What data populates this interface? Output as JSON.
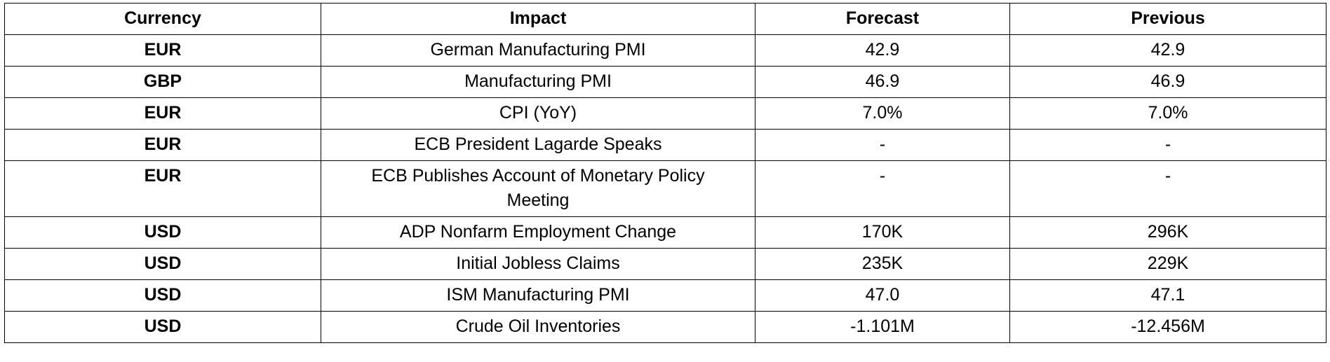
{
  "table": {
    "headers": [
      "Currency",
      "Impact",
      "Forecast",
      "Previous"
    ],
    "rows": [
      [
        "EUR",
        "German Manufacturing PMI",
        "42.9",
        "42.9"
      ],
      [
        "GBP",
        "Manufacturing PMI",
        "46.9",
        "46.9"
      ],
      [
        "EUR",
        "CPI (YoY)",
        "7.0%",
        "7.0%"
      ],
      [
        "EUR",
        "ECB President Lagarde Speaks",
        "-",
        "-"
      ],
      [
        "EUR",
        "ECB Publishes Account of Monetary Policy Meeting",
        "-",
        "-"
      ],
      [
        "USD",
        "ADP Nonfarm Employment Change",
        "170K",
        "296K"
      ],
      [
        "USD",
        "Initial Jobless Claims",
        "235K",
        "229K"
      ],
      [
        "USD",
        "ISM Manufacturing PMI",
        "47.0",
        "47.1"
      ],
      [
        "USD",
        "Crude Oil Inventories",
        "-1.101M",
        "-12.456M"
      ]
    ]
  }
}
